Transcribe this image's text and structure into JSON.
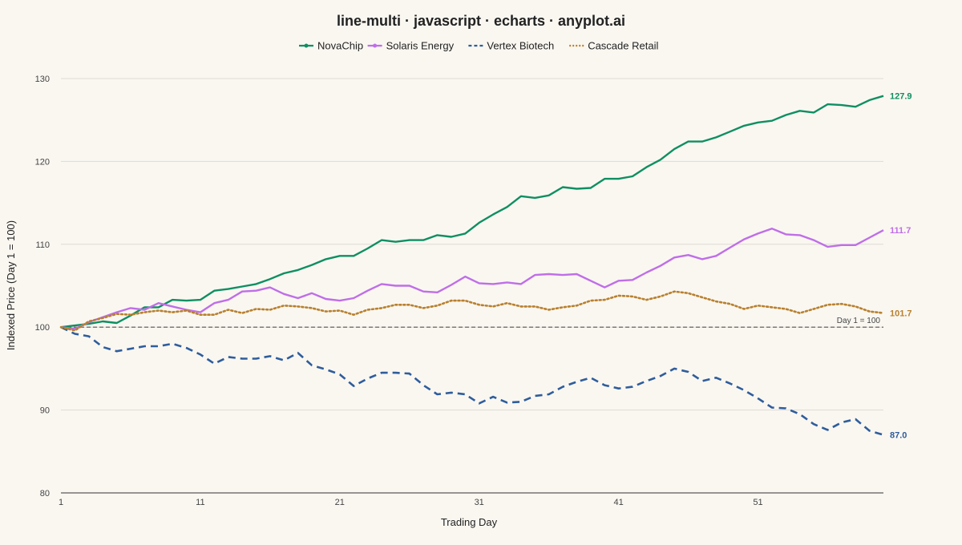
{
  "colors": {
    "background": "#faf7f1",
    "grid": "#dedbd5",
    "axis": "#333333",
    "baseline": "#555555"
  },
  "chart_data": {
    "type": "line",
    "title": "line-multi · javascript · echarts · anyplot.ai",
    "xlabel": "Trading Day",
    "ylabel": "Indexed Price (Day 1 = 100)",
    "x_range": [
      1,
      60
    ],
    "ylim": [
      80,
      130
    ],
    "x_ticks": [
      1,
      11,
      21,
      31,
      41,
      51
    ],
    "y_ticks": [
      80,
      90,
      100,
      110,
      120,
      130
    ],
    "grid": true,
    "legend_position": "top-center",
    "baseline": {
      "value": 100,
      "label": "Day 1 = 100"
    },
    "series": [
      {
        "name": "NovaChip",
        "color": "#0e8f62",
        "dash": "solid",
        "end_label": "127.9",
        "values": [
          100.0,
          100.2,
          100.4,
          100.7,
          100.5,
          101.4,
          102.4,
          102.4,
          103.3,
          103.2,
          103.3,
          104.4,
          104.6,
          104.9,
          105.2,
          105.8,
          106.5,
          106.9,
          107.5,
          108.2,
          108.6,
          108.6,
          109.5,
          110.5,
          110.3,
          110.5,
          110.5,
          111.1,
          110.9,
          111.3,
          112.6,
          113.6,
          114.5,
          115.8,
          115.6,
          115.9,
          116.9,
          116.7,
          116.8,
          117.9,
          117.9,
          118.2,
          119.3,
          120.2,
          121.5,
          122.4,
          122.4,
          122.9,
          123.6,
          124.3,
          124.7,
          124.9,
          125.6,
          126.1,
          125.9,
          126.9,
          126.8,
          126.6,
          127.4,
          127.9
        ]
      },
      {
        "name": "Solaris Energy",
        "color": "#bf6ee8",
        "dash": "solid",
        "end_label": "111.7",
        "values": [
          100.0,
          99.8,
          100.6,
          101.2,
          101.8,
          102.3,
          102.1,
          102.9,
          102.5,
          102.1,
          101.8,
          102.9,
          103.3,
          104.3,
          104.4,
          104.8,
          104.0,
          103.5,
          104.1,
          103.4,
          103.2,
          103.5,
          104.4,
          105.2,
          105.0,
          105.0,
          104.3,
          104.2,
          105.1,
          106.1,
          105.3,
          105.2,
          105.4,
          105.2,
          106.3,
          106.4,
          106.3,
          106.4,
          105.6,
          104.8,
          105.6,
          105.7,
          106.6,
          107.4,
          108.4,
          108.7,
          108.2,
          108.6,
          109.6,
          110.6,
          111.3,
          111.9,
          111.2,
          111.1,
          110.5,
          109.7,
          109.9,
          109.9,
          110.8,
          111.7
        ]
      },
      {
        "name": "Vertex Biotech",
        "color": "#2e5d9c",
        "dash": "dashed",
        "end_label": "87.0",
        "values": [
          100.0,
          99.2,
          98.9,
          97.6,
          97.1,
          97.4,
          97.7,
          97.7,
          98.0,
          97.5,
          96.7,
          95.6,
          96.4,
          96.2,
          96.2,
          96.5,
          96.0,
          96.9,
          95.4,
          94.9,
          94.3,
          92.9,
          93.8,
          94.5,
          94.5,
          94.4,
          93.0,
          91.9,
          92.1,
          91.9,
          90.8,
          91.6,
          90.9,
          91.0,
          91.7,
          91.9,
          92.8,
          93.4,
          93.9,
          93.0,
          92.6,
          92.8,
          93.5,
          94.1,
          95.0,
          94.6,
          93.5,
          93.9,
          93.2,
          92.4,
          91.4,
          90.3,
          90.2,
          89.5,
          88.3,
          87.6,
          88.5,
          88.9,
          87.5,
          87.0
        ]
      },
      {
        "name": "Cascade Retail",
        "color": "#b8802e",
        "dash": "dotted",
        "end_label": "101.7",
        "values": [
          100.0,
          99.6,
          100.7,
          101.1,
          101.6,
          101.5,
          101.8,
          102.0,
          101.8,
          102.0,
          101.5,
          101.5,
          102.1,
          101.7,
          102.2,
          102.1,
          102.6,
          102.5,
          102.3,
          101.9,
          102.0,
          101.5,
          102.1,
          102.3,
          102.7,
          102.7,
          102.3,
          102.6,
          103.2,
          103.2,
          102.7,
          102.5,
          102.9,
          102.5,
          102.5,
          102.1,
          102.4,
          102.6,
          103.2,
          103.3,
          103.8,
          103.7,
          103.3,
          103.7,
          104.3,
          104.1,
          103.6,
          103.1,
          102.8,
          102.2,
          102.6,
          102.4,
          102.2,
          101.7,
          102.2,
          102.7,
          102.8,
          102.5,
          101.9,
          101.7
        ]
      }
    ]
  }
}
